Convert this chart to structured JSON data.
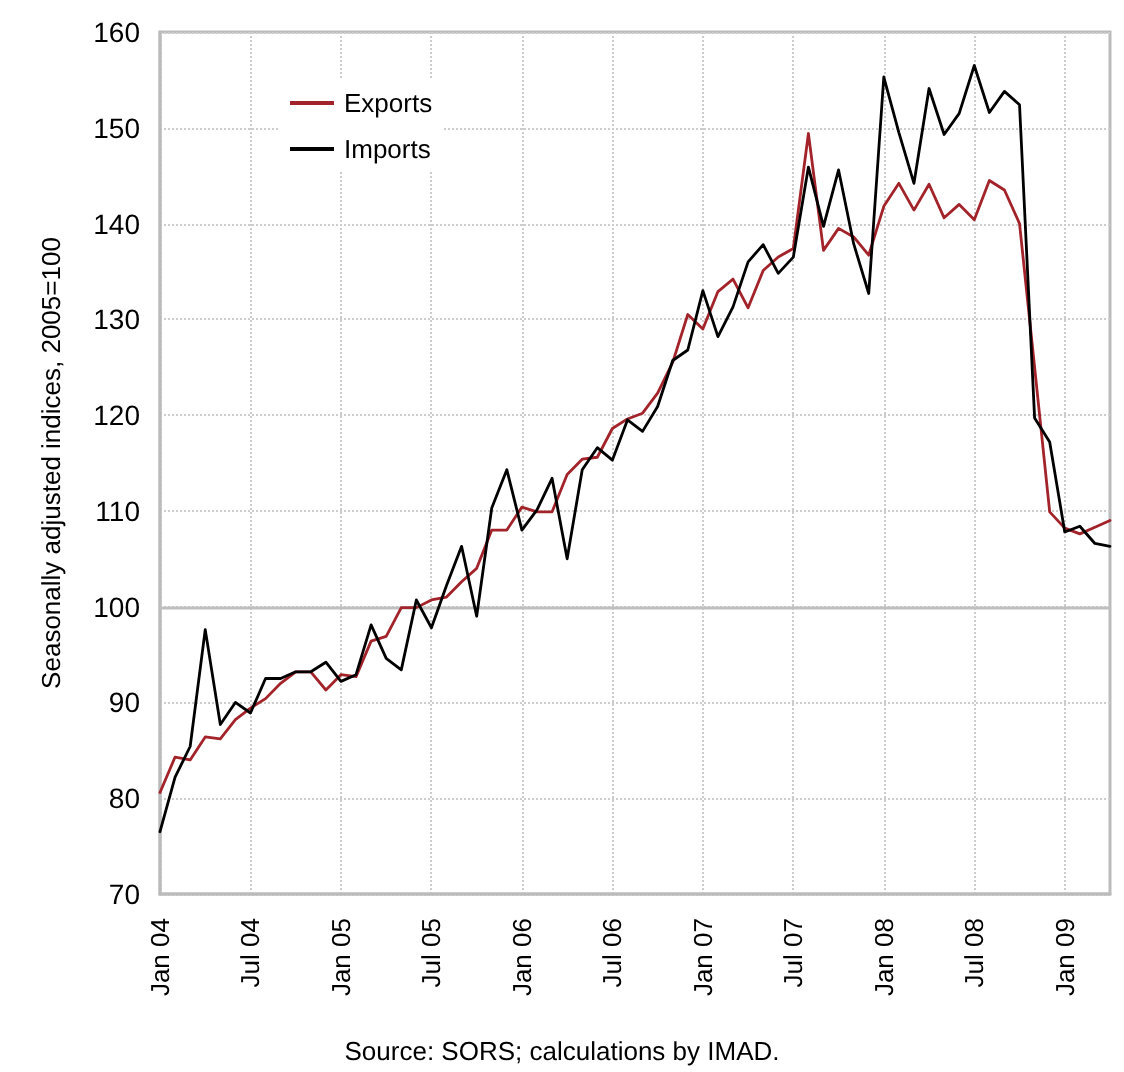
{
  "chart_data": {
    "type": "line",
    "ylabel": "Seasonally adjusted indices, 2005=100",
    "annotations": [
      "Source: SORS; calculations by IMAD."
    ],
    "categories": [
      "Jan 04",
      null,
      null,
      null,
      null,
      null,
      "Jul 04",
      null,
      null,
      null,
      null,
      null,
      "Jan 05",
      null,
      null,
      null,
      null,
      null,
      "Jul 05",
      null,
      null,
      null,
      null,
      null,
      "Jan 06",
      null,
      null,
      null,
      null,
      null,
      "Jul 06",
      null,
      null,
      null,
      null,
      null,
      "Jan 07",
      null,
      null,
      null,
      null,
      null,
      "Jul 07",
      null,
      null,
      null,
      null,
      null,
      "Jan 08",
      null,
      null,
      null,
      null,
      null,
      "Jul 08",
      null,
      null,
      null,
      null,
      null,
      "Jan 09",
      null,
      null,
      null
    ],
    "series": [
      {
        "name": "Exports",
        "color": "#a3232a",
        "values": [
          80.6,
          84.3,
          84,
          86.4,
          86.2,
          88.2,
          89.4,
          90.4,
          92,
          93.2,
          93.2,
          91.3,
          92.9,
          92.7,
          96.4,
          96.9,
          99.9,
          99.9,
          100.7,
          101,
          102.6,
          104,
          108,
          108,
          110.4,
          109.9,
          109.9,
          113.8,
          115.4,
          115.6,
          118.6,
          119.6,
          120.2,
          122.3,
          125.5,
          130.5,
          129,
          132.9,
          134.2,
          131.2,
          135.1,
          136.5,
          137.4,
          149.4,
          137.2,
          139.5,
          138.6,
          136.7,
          141.8,
          144.2,
          141.4,
          144.1,
          140.6,
          142,
          140.4,
          144.5,
          143.5,
          140,
          125,
          109.9,
          108.2,
          107.6,
          108.3,
          109
        ]
      },
      {
        "name": "Imports",
        "color": "#000000",
        "values": [
          76.5,
          82.2,
          85.4,
          97.6,
          87.7,
          90,
          88.9,
          92.5,
          92.5,
          93.2,
          93.2,
          94.2,
          92.2,
          92.9,
          98.1,
          94.6,
          93.4,
          100.7,
          97.8,
          102.2,
          106.3,
          99,
          110.3,
          114.3,
          108,
          110.1,
          113.4,
          105,
          114.3,
          116.6,
          115.3,
          119.5,
          118.3,
          120.9,
          125.7,
          126.8,
          133,
          128.2,
          131.3,
          136,
          137.8,
          134.8,
          136.5,
          145.9,
          139.7,
          145.6,
          137.9,
          132.7,
          155.3,
          149.5,
          144.2,
          154.1,
          149.3,
          151.5,
          156.5,
          151.6,
          153.8,
          152.4,
          119.7,
          117.2,
          107.8,
          108.4,
          106.6,
          106.3
        ]
      }
    ],
    "ylim": [
      70,
      160
    ],
    "yticks": [
      70,
      80,
      90,
      100,
      110,
      120,
      130,
      140,
      150,
      160
    ],
    "ref_lines": [
      {
        "axis": "y",
        "value": 100,
        "color": "#bfbfbf"
      }
    ],
    "grid": true,
    "legend": "top left",
    "marker": "none",
    "line_style": "solid"
  }
}
